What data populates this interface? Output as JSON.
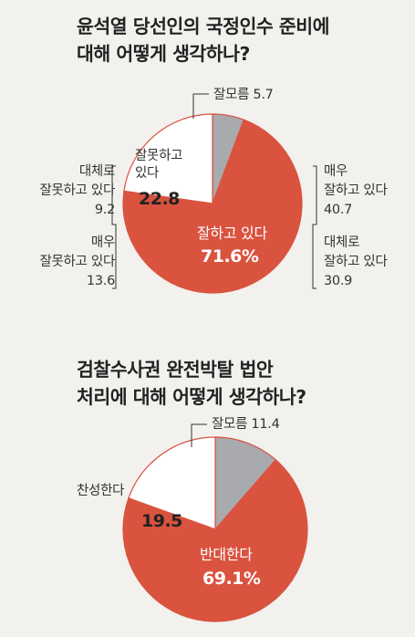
{
  "colors": {
    "red": "#d9533f",
    "gray": "#a9aaad",
    "white": "#ffffff",
    "line": "#333333"
  },
  "chart_data": [
    {
      "type": "pie",
      "title": [
        "윤석열 당선인의 국정인수 준비에",
        "대해 어떻게 생각하나?"
      ],
      "start": "gray-first-clockwise",
      "slices": [
        {
          "key": "dontknow",
          "value": 5.7,
          "color": "#a9aaad"
        },
        {
          "key": "good",
          "value": 71.6,
          "color": "#d9533f"
        },
        {
          "key": "bad",
          "value": 22.8,
          "color": "#ffffff"
        }
      ],
      "labels": {
        "dontknow": "잘모름 5.7",
        "good_inside": [
          "잘하고 있다",
          "71.6%"
        ],
        "bad_inside": [
          "잘못하고",
          "있다",
          "22.8"
        ],
        "very_good": [
          "매우",
          "잘하고 있다",
          "40.7"
        ],
        "mostly_good": [
          "대체로",
          "잘하고 있다",
          "30.9"
        ],
        "mostly_bad": [
          "대체로",
          "잘못하고 있다",
          "9.2"
        ],
        "very_bad": [
          "매우",
          "잘못하고 있다",
          "13.6"
        ]
      }
    },
    {
      "type": "pie",
      "title": [
        "검찰수사권 완전박탈 법안",
        "처리에 대해 어떻게 생각하나?"
      ],
      "slices": [
        {
          "key": "dontknow",
          "value": 11.4,
          "color": "#a9aaad"
        },
        {
          "key": "oppose",
          "value": 69.1,
          "color": "#d9533f"
        },
        {
          "key": "support",
          "value": 19.5,
          "color": "#ffffff"
        }
      ],
      "labels": {
        "dontknow": "잘모름 11.4",
        "support_outside": "찬성한다",
        "support_inside": "19.5",
        "oppose_inside": [
          "반대한다",
          "69.1%"
        ]
      }
    }
  ]
}
